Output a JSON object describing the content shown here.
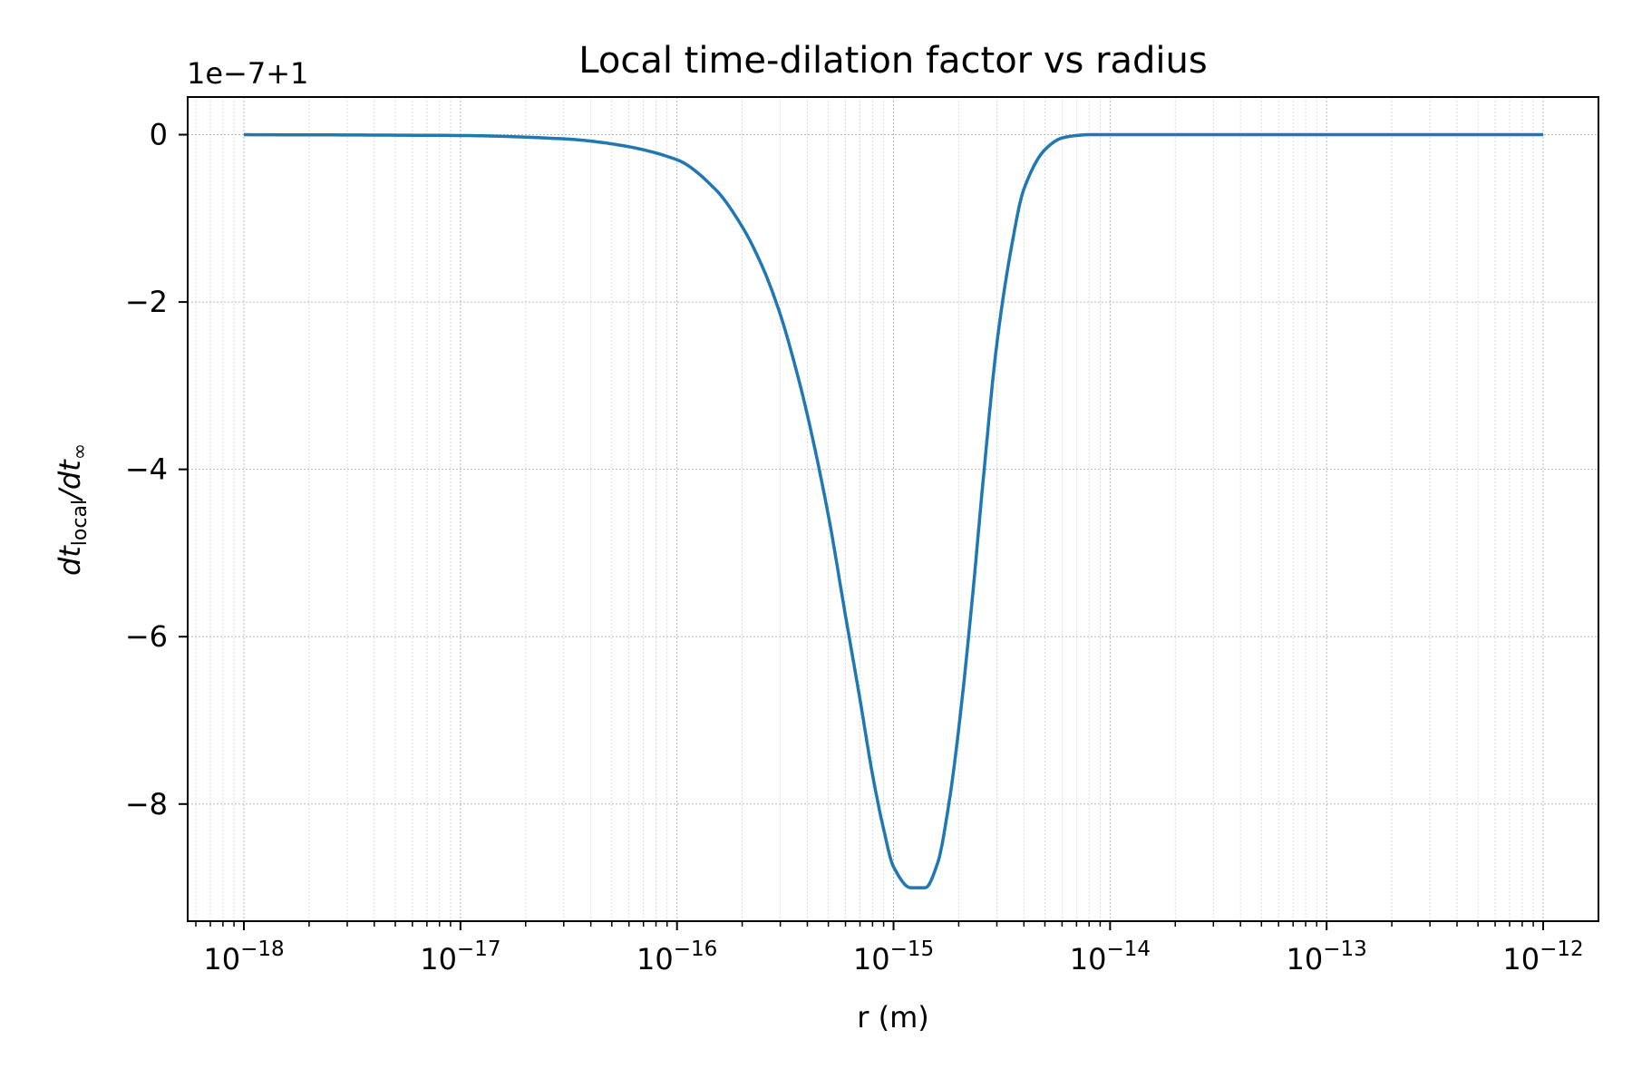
{
  "chart_data": {
    "type": "line",
    "title": "Local time-dilation factor vs radius",
    "xlabel": "r (m)",
    "ylabel_main": "dt",
    "ylabel_sub": "local",
    "ylabel_rest": "/dt",
    "ylabel_sub2": "∞",
    "y_offset_text": "1e−7+1",
    "x_scale": "log",
    "xlim": [
      5.5e-19,
      1.8e-12
    ],
    "ylim": [
      -9.4,
      0.45
    ],
    "y_units_note": "values shown are (factor − 1) × 1e7",
    "x_ticks": [
      {
        "base": "10",
        "exp": "−18",
        "value": 1e-18
      },
      {
        "base": "10",
        "exp": "−17",
        "value": 1e-17
      },
      {
        "base": "10",
        "exp": "−16",
        "value": 1e-16
      },
      {
        "base": "10",
        "exp": "−15",
        "value": 1e-15
      },
      {
        "base": "10",
        "exp": "−14",
        "value": 1e-14
      },
      {
        "base": "10",
        "exp": "−13",
        "value": 1e-13
      },
      {
        "base": "10",
        "exp": "−12",
        "value": 1e-12
      }
    ],
    "y_ticks": [
      {
        "label": "0",
        "value": 0
      },
      {
        "label": "−2",
        "value": -2
      },
      {
        "label": "−4",
        "value": -4
      },
      {
        "label": "−6",
        "value": -6
      },
      {
        "label": "−8",
        "value": -8
      }
    ],
    "grid": true,
    "series": [
      {
        "color": "#1f77b4",
        "x": [
          1e-18,
          1e-17,
          3e-17,
          5e-17,
          1e-16,
          1.5e-16,
          2e-16,
          2.5e-16,
          3e-16,
          3.5e-16,
          4e-16,
          5e-16,
          6e-16,
          7e-16,
          8e-16,
          9e-16,
          1e-15,
          1.2e-15,
          1.4e-15,
          1.6e-15,
          1.8e-15,
          2e-15,
          2.3e-15,
          2.6e-15,
          3e-15,
          3.5e-15,
          4e-15,
          5e-15,
          6e-15,
          7e-15,
          8e-15,
          1e-14,
          1e-13,
          1e-12
        ],
        "y": [
          0,
          -0.01,
          -0.05,
          -0.11,
          -0.3,
          -0.65,
          -1.1,
          -1.6,
          -2.15,
          -2.75,
          -3.35,
          -4.55,
          -5.75,
          -6.75,
          -7.65,
          -8.3,
          -8.75,
          -9.0,
          -9.0,
          -8.7,
          -8.0,
          -7.1,
          -5.6,
          -4.1,
          -2.5,
          -1.35,
          -0.65,
          -0.18,
          -0.04,
          -0.01,
          0,
          0,
          0,
          0
        ]
      }
    ]
  }
}
